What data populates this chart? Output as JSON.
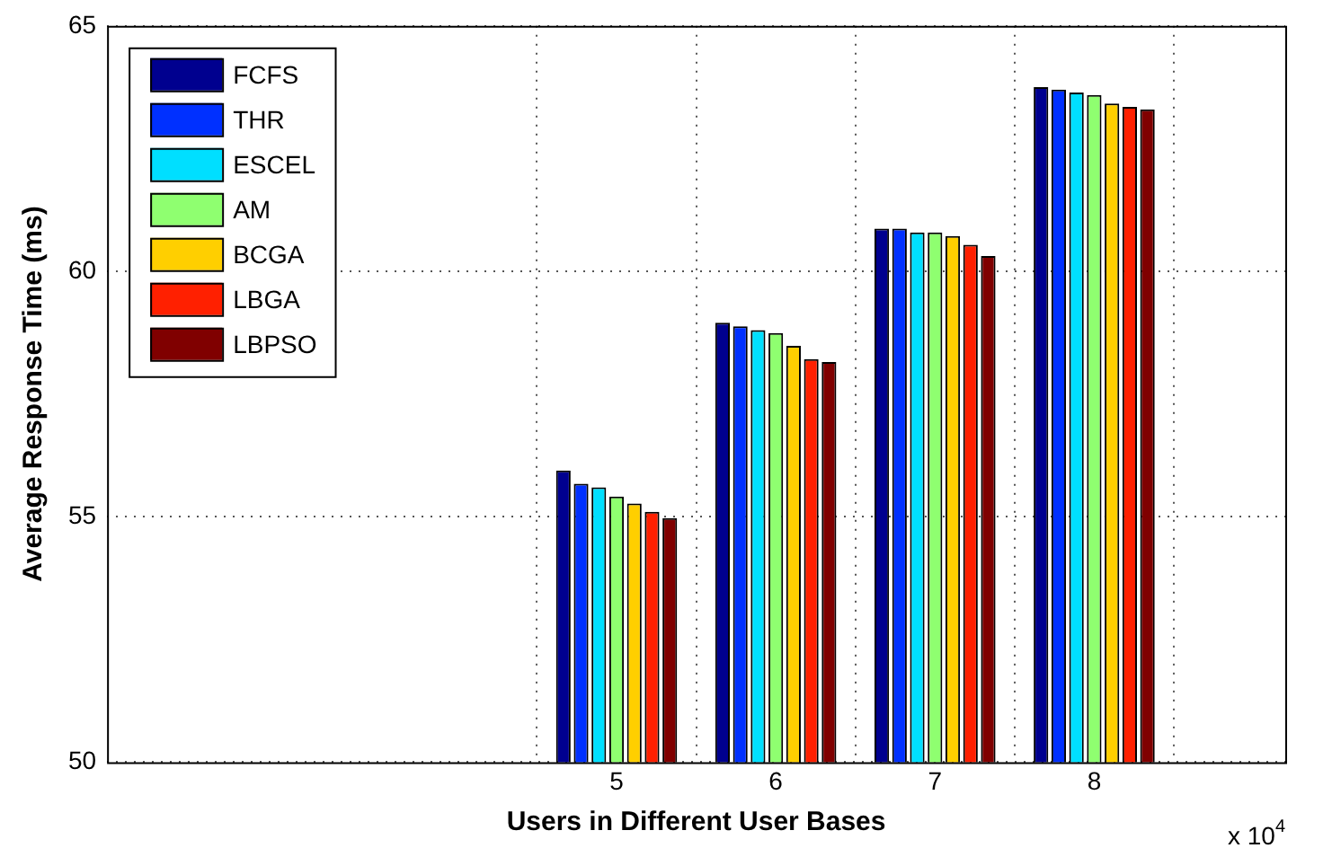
{
  "chart_data": {
    "type": "bar",
    "xlabel": "Users in Different User Bases",
    "ylabel": "Average Response Time (ms)",
    "x": [
      5,
      6,
      7,
      8
    ],
    "series": [
      {
        "name": "FCFS",
        "color": "#00008f",
        "values": [
          55.94,
          58.95,
          60.87,
          63.75
        ]
      },
      {
        "name": "THR",
        "color": "#0030ff",
        "values": [
          55.67,
          58.88,
          60.87,
          63.7
        ]
      },
      {
        "name": "ESCEL",
        "color": "#00dfff",
        "values": [
          55.6,
          58.8,
          60.79,
          63.64
        ]
      },
      {
        "name": "AM",
        "color": "#8fff70",
        "values": [
          55.41,
          58.74,
          60.79,
          63.59
        ]
      },
      {
        "name": "BCGA",
        "color": "#ffcf00",
        "values": [
          55.27,
          58.48,
          60.72,
          63.42
        ]
      },
      {
        "name": "LBGA",
        "color": "#ff2000",
        "values": [
          55.1,
          58.21,
          60.54,
          63.35
        ]
      },
      {
        "name": "LBPSO",
        "color": "#800000",
        "values": [
          54.97,
          58.15,
          60.31,
          63.3
        ]
      }
    ],
    "xlim": [
      1.8,
      9.2
    ],
    "xticks": [
      5,
      6,
      7,
      8
    ],
    "ylim": [
      50,
      65
    ],
    "yticks": [
      50,
      55,
      60,
      65
    ],
    "annotations": [
      "x 10$^{4}$"
    ],
    "grid": true,
    "legend": "top left"
  }
}
